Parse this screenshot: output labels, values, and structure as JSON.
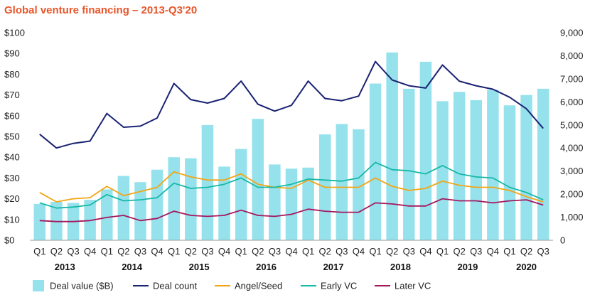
{
  "title": "Global venture financing – 2013-Q3'20",
  "colors": {
    "title": "#e8562a",
    "bars": "#96e2ec",
    "deal_count": "#1a2273",
    "angel_seed": "#f2a516",
    "early_vc": "#16b8a6",
    "later_vc": "#a5175e",
    "axis": "#222222"
  },
  "chart_data": {
    "type": "bar",
    "title": "Global venture financing – 2013-Q3'20",
    "categories": [
      "Q1",
      "Q2",
      "Q3",
      "Q4",
      "Q1",
      "Q2",
      "Q3",
      "Q4",
      "Q1",
      "Q2",
      "Q3",
      "Q4",
      "Q1",
      "Q2",
      "Q3",
      "Q4",
      "Q1",
      "Q2",
      "Q3",
      "Q4",
      "Q1",
      "Q2",
      "Q3",
      "Q4",
      "Q1",
      "Q2",
      "Q3",
      "Q4",
      "Q1",
      "Q2",
      "Q3"
    ],
    "years": [
      {
        "label": "2013",
        "start": 0,
        "count": 4
      },
      {
        "label": "2014",
        "start": 4,
        "count": 4
      },
      {
        "label": "2015",
        "start": 8,
        "count": 4
      },
      {
        "label": "2016",
        "start": 12,
        "count": 4
      },
      {
        "label": "2017",
        "start": 16,
        "count": 4
      },
      {
        "label": "2018",
        "start": 20,
        "count": 4
      },
      {
        "label": "2019",
        "start": 24,
        "count": 4
      },
      {
        "label": "2020",
        "start": 28,
        "count": 3
      }
    ],
    "y_left": {
      "min": 0,
      "max": 100,
      "step": 10,
      "ticks": [
        "$0",
        "$10",
        "$20",
        "$30",
        "$40",
        "$50",
        "$60",
        "$70",
        "$80",
        "$90",
        "$100"
      ]
    },
    "y_right": {
      "min": 0,
      "max": 9000,
      "step": 1000,
      "ticks": [
        "0",
        "1,000",
        "2,000",
        "3,000",
        "4,000",
        "5,000",
        "6,000",
        "7,000",
        "8,000",
        "9,000"
      ]
    },
    "series": [
      {
        "name": "Deal value ($B)",
        "kind": "bar",
        "axis": "left",
        "values": [
          17.5,
          18.5,
          18,
          19.5,
          24.5,
          31,
          28,
          34,
          40,
          39.5,
          55.5,
          35.5,
          44,
          58.5,
          36.5,
          34.5,
          35,
          51,
          56,
          53.5,
          75.5,
          90.5,
          73,
          86,
          67,
          71.5,
          67.5,
          72.5,
          65,
          70,
          73
        ]
      },
      {
        "name": "Deal count",
        "kind": "line",
        "axis": "right",
        "values": [
          4600,
          4000,
          4200,
          4300,
          5500,
          4900,
          4950,
          5300,
          6800,
          6100,
          5950,
          6150,
          6900,
          5900,
          5600,
          5850,
          6900,
          6150,
          6050,
          6250,
          7750,
          6950,
          6700,
          6600,
          7600,
          6900,
          6700,
          6550,
          6200,
          5700,
          4850
        ]
      },
      {
        "name": "Angel/Seed",
        "kind": "line",
        "axis": "left",
        "values": [
          23,
          18.5,
          20,
          20.5,
          26,
          21.5,
          23.5,
          25.5,
          33,
          30.5,
          29,
          29,
          32,
          27,
          25.5,
          25,
          29,
          25.5,
          25.5,
          25.5,
          30,
          26,
          24,
          25,
          28.5,
          26.5,
          25.5,
          25.5,
          24,
          21,
          18.5
        ]
      },
      {
        "name": "Early VC",
        "kind": "line",
        "axis": "left",
        "values": [
          18,
          15.5,
          16,
          17,
          22,
          19,
          19.5,
          20.5,
          27.5,
          25,
          25.5,
          27,
          30,
          25.5,
          25.5,
          27,
          29.5,
          29,
          28.5,
          30,
          37.5,
          34,
          33.5,
          32,
          36,
          32,
          30.5,
          30,
          25.5,
          23,
          19.5
        ]
      },
      {
        "name": "Later VC",
        "kind": "line",
        "axis": "left",
        "values": [
          9.5,
          9,
          9,
          9.5,
          11,
          12,
          9.5,
          10.5,
          14,
          12,
          11.5,
          12,
          14.5,
          12,
          11.5,
          12.5,
          15,
          14,
          13.5,
          13.5,
          18,
          17.5,
          16.5,
          16.5,
          20,
          19,
          19,
          18,
          19,
          19.5,
          17
        ]
      }
    ],
    "legend": [
      {
        "label": "Deal value ($B)",
        "marker": "box",
        "color_key": "bars"
      },
      {
        "label": "Deal count",
        "marker": "line",
        "color_key": "deal_count"
      },
      {
        "label": "Angel/Seed",
        "marker": "line",
        "color_key": "angel_seed"
      },
      {
        "label": "Early VC",
        "marker": "line",
        "color_key": "early_vc"
      },
      {
        "label": "Later VC",
        "marker": "line",
        "color_key": "later_vc"
      }
    ],
    "legend_position": "bottom",
    "grid": false
  }
}
